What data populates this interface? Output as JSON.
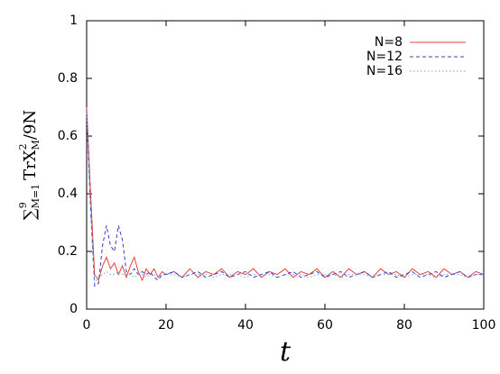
{
  "chart_data": {
    "type": "line",
    "xlabel": "t",
    "ylabel": {
      "sum": "∑",
      "sup": "9",
      "sub": "M=1",
      "text": "TrX",
      "sup2": "2",
      "sub2": "M",
      "tail": "/9N"
    },
    "xlim": [
      0,
      100
    ],
    "ylim": [
      0,
      1
    ],
    "xticks": [
      0,
      20,
      40,
      60,
      80,
      100
    ],
    "yticks": [
      0,
      0.2,
      0.4,
      0.6,
      0.8,
      1
    ],
    "legend": "top-right",
    "x": [
      0,
      1,
      2,
      3,
      4,
      5,
      6,
      7,
      8,
      9,
      10,
      11,
      12,
      13,
      14,
      15,
      16,
      17,
      18,
      19,
      20,
      22,
      24,
      26,
      28,
      30,
      32,
      34,
      36,
      38,
      40,
      42,
      44,
      46,
      48,
      50,
      52,
      54,
      56,
      58,
      60,
      62,
      64,
      66,
      68,
      70,
      72,
      74,
      76,
      78,
      80,
      82,
      84,
      86,
      88,
      90,
      92,
      94,
      96,
      98,
      100
    ],
    "series": [
      {
        "name": "N=8",
        "color": "#e8403a",
        "dash": "solid",
        "values": [
          0.7,
          0.4,
          0.12,
          0.1,
          0.15,
          0.18,
          0.14,
          0.16,
          0.12,
          0.15,
          0.11,
          0.15,
          0.18,
          0.13,
          0.1,
          0.14,
          0.12,
          0.14,
          0.11,
          0.13,
          0.12,
          0.13,
          0.11,
          0.14,
          0.11,
          0.13,
          0.12,
          0.14,
          0.11,
          0.13,
          0.12,
          0.14,
          0.11,
          0.13,
          0.12,
          0.14,
          0.11,
          0.13,
          0.12,
          0.14,
          0.11,
          0.13,
          0.11,
          0.14,
          0.12,
          0.13,
          0.11,
          0.14,
          0.12,
          0.13,
          0.11,
          0.14,
          0.12,
          0.13,
          0.11,
          0.14,
          0.12,
          0.13,
          0.11,
          0.13,
          0.12
        ]
      },
      {
        "name": "N=12",
        "color": "#3b3bc4",
        "dash": "dashed",
        "values": [
          0.68,
          0.35,
          0.08,
          0.09,
          0.22,
          0.29,
          0.22,
          0.2,
          0.29,
          0.24,
          0.13,
          0.12,
          0.14,
          0.12,
          0.13,
          0.12,
          0.13,
          0.11,
          0.1,
          0.12,
          0.12,
          0.13,
          0.11,
          0.12,
          0.13,
          0.11,
          0.12,
          0.13,
          0.11,
          0.12,
          0.13,
          0.11,
          0.12,
          0.13,
          0.11,
          0.12,
          0.13,
          0.11,
          0.12,
          0.13,
          0.11,
          0.12,
          0.13,
          0.11,
          0.12,
          0.13,
          0.11,
          0.12,
          0.13,
          0.11,
          0.12,
          0.13,
          0.11,
          0.12,
          0.13,
          0.11,
          0.12,
          0.13,
          0.11,
          0.12,
          0.12
        ]
      },
      {
        "name": "N=16",
        "color": "#6fa9d6",
        "dash": "dotted",
        "values": [
          0.68,
          0.33,
          0.09,
          0.11,
          0.12,
          0.13,
          0.12,
          0.12,
          0.13,
          0.12,
          0.12,
          0.12,
          0.11,
          0.12,
          0.12,
          0.11,
          0.12,
          0.12,
          0.11,
          0.12,
          0.12,
          0.12,
          0.11,
          0.12,
          0.12,
          0.12,
          0.11,
          0.12,
          0.12,
          0.12,
          0.11,
          0.12,
          0.12,
          0.12,
          0.11,
          0.12,
          0.12,
          0.12,
          0.11,
          0.12,
          0.12,
          0.12,
          0.11,
          0.12,
          0.12,
          0.12,
          0.11,
          0.12,
          0.12,
          0.12,
          0.11,
          0.12,
          0.12,
          0.12,
          0.11,
          0.12,
          0.12,
          0.12,
          0.11,
          0.12,
          0.12
        ]
      }
    ]
  }
}
